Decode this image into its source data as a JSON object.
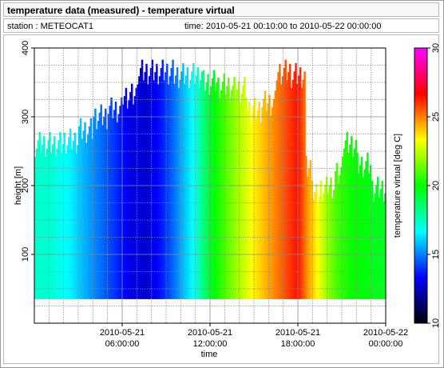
{
  "header": {
    "title": "temperature data (measured) - temperature virtual",
    "station_text": "station : METEOCAT1",
    "time_text": "time: 2010-05-21 00:10:00 to 2010-05-22 00:00:00"
  },
  "chart_data": {
    "type": "heatmap",
    "title": "temperature data (measured) - temperature virtual",
    "xlabel": "time",
    "ylabel": "height [m]",
    "colorbar_label": "temperature virtual [deg C]",
    "x_range": [
      "2010-05-21 00:10:00",
      "2010-05-22 00:00:00"
    ],
    "ylim": [
      0,
      400
    ],
    "clim": [
      10,
      30
    ],
    "grid": true,
    "y_ticks": [
      100,
      200,
      300,
      400
    ],
    "x_ticks": [
      {
        "value": "2010-05-21 06:00:00",
        "date": "2010-05-21",
        "time": "06:00:00"
      },
      {
        "value": "2010-05-21 12:00:00",
        "date": "2010-05-21",
        "time": "12:00:00"
      },
      {
        "value": "2010-05-21 18:00:00",
        "date": "2010-05-21",
        "time": "18:00:00"
      },
      {
        "value": "2010-05-22 00:00:00",
        "date": "2010-05-22",
        "time": "00:00:00"
      }
    ],
    "colorbar_ticks": [
      10,
      15,
      20,
      25,
      30
    ],
    "colorbar_stops": [
      "#000000",
      "#0000ff",
      "#00ffff",
      "#00ff00",
      "#ffff00",
      "#ff0000",
      "#ff00ff"
    ],
    "profile_bottom_m": 35,
    "profiles": [
      {
        "start_h": 0.0,
        "end_h": 2.0,
        "top_m": 260,
        "temp_c": 17.3
      },
      {
        "start_h": 2.0,
        "end_h": 3.0,
        "top_m": 265,
        "temp_c": 16.5
      },
      {
        "start_h": 3.0,
        "end_h": 4.0,
        "top_m": 280,
        "temp_c": 15.6
      },
      {
        "start_h": 4.0,
        "end_h": 5.0,
        "top_m": 300,
        "temp_c": 14.8
      },
      {
        "start_h": 5.0,
        "end_h": 6.0,
        "top_m": 310,
        "temp_c": 14.0
      },
      {
        "start_h": 6.0,
        "end_h": 7.0,
        "top_m": 330,
        "temp_c": 13.0
      },
      {
        "start_h": 7.0,
        "end_h": 8.5,
        "top_m": 365,
        "temp_c": 12.7
      },
      {
        "start_h": 8.5,
        "end_h": 9.5,
        "top_m": 365,
        "temp_c": 14.0
      },
      {
        "start_h": 9.5,
        "end_h": 10.5,
        "top_m": 360,
        "temp_c": 15.5
      },
      {
        "start_h": 10.5,
        "end_h": 11.5,
        "top_m": 360,
        "temp_c": 17.0
      },
      {
        "start_h": 11.5,
        "end_h": 12.5,
        "top_m": 350,
        "temp_c": 19.5
      },
      {
        "start_h": 12.5,
        "end_h": 13.5,
        "top_m": 345,
        "temp_c": 21.0
      },
      {
        "start_h": 13.5,
        "end_h": 14.5,
        "top_m": 340,
        "temp_c": 22.3
      },
      {
        "start_h": 14.5,
        "end_h": 15.5,
        "top_m": 310,
        "temp_c": 23.5
      },
      {
        "start_h": 15.5,
        "end_h": 16.5,
        "top_m": 320,
        "temp_c": 24.5
      },
      {
        "start_h": 16.5,
        "end_h": 17.5,
        "top_m": 365,
        "temp_c": 25.5
      },
      {
        "start_h": 17.5,
        "end_h": 18.5,
        "top_m": 360,
        "temp_c": 26.5
      },
      {
        "start_h": 18.5,
        "end_h": 19.0,
        "top_m": 225,
        "temp_c": 24.5
      },
      {
        "start_h": 19.0,
        "end_h": 19.5,
        "top_m": 185,
        "temp_c": 23.5
      },
      {
        "start_h": 19.5,
        "end_h": 20.0,
        "top_m": 195,
        "temp_c": 22.5
      },
      {
        "start_h": 20.0,
        "end_h": 20.5,
        "top_m": 200,
        "temp_c": 21.5
      },
      {
        "start_h": 20.5,
        "end_h": 21.0,
        "top_m": 215,
        "temp_c": 20.8
      },
      {
        "start_h": 21.0,
        "end_h": 22.0,
        "top_m": 260,
        "temp_c": 20.2
      },
      {
        "start_h": 22.0,
        "end_h": 23.0,
        "top_m": 230,
        "temp_c": 19.9
      },
      {
        "start_h": 23.0,
        "end_h": 24.0,
        "top_m": 195,
        "temp_c": 19.6
      }
    ]
  }
}
